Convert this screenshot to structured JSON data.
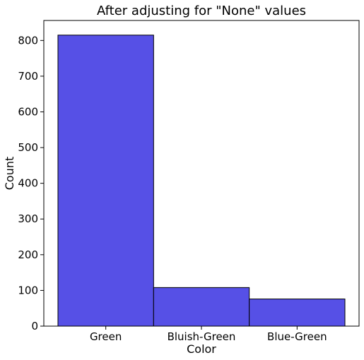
{
  "chart_data": {
    "type": "bar",
    "title": "After adjusting for \"None\" values",
    "xlabel": "Color",
    "ylabel": "Count",
    "categories": [
      "Green",
      "Bluish-Green",
      "Blue-Green"
    ],
    "values": [
      815,
      108,
      76
    ],
    "ylim": [
      0,
      856
    ],
    "yticks": [
      0,
      100,
      200,
      300,
      400,
      500,
      600,
      700,
      800
    ],
    "bar_color": "#5650e6",
    "edge_color": "#000000",
    "grid": false,
    "legend": "none"
  }
}
